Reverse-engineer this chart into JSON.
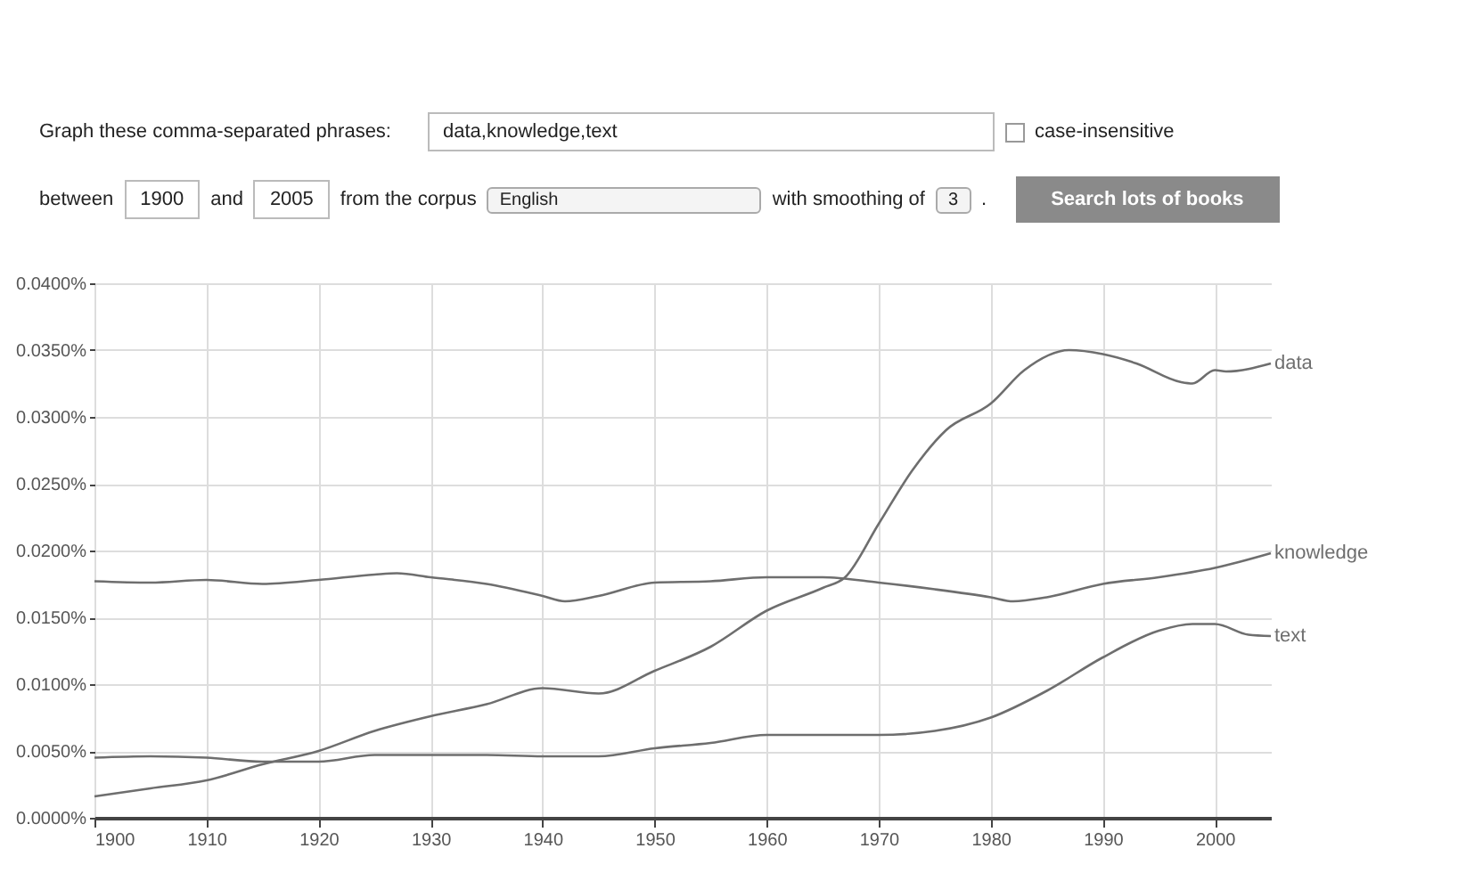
{
  "chart_data": {
    "type": "line",
    "annotations": [
      "Graph these comma-separated phrases:",
      "data,knowledge,text",
      "case-insensitive",
      "between",
      "1900",
      "and",
      "2005",
      "from the corpus",
      "English",
      "with smoothing of",
      "3",
      ".",
      "Search lots of books"
    ],
    "series": [
      {
        "name": "data",
        "color": "#6e6e6e",
        "x": [
          1900,
          1905,
          1910,
          1915,
          1920,
          1925,
          1930,
          1935,
          1940,
          1945,
          1950,
          1955,
          1960,
          1965,
          1967,
          1970,
          1973,
          1976,
          1980,
          1983,
          1987,
          1990,
          1993,
          1997,
          1998,
          2000,
          2001,
          2005
        ],
        "values": [
          0.0016,
          0.0022,
          0.0028,
          0.004,
          0.005,
          0.0065,
          0.0076,
          0.0085,
          0.0097,
          0.0093,
          0.011,
          0.0128,
          0.0155,
          0.0172,
          0.018,
          0.022,
          0.026,
          0.029,
          0.031,
          0.0335,
          0.035,
          0.0347,
          0.034,
          0.0326,
          0.0325,
          0.0335,
          0.0334,
          0.034
        ]
      },
      {
        "name": "knowledge",
        "color": "#6e6e6e",
        "x": [
          1900,
          1905,
          1910,
          1915,
          1920,
          1925,
          1927,
          1930,
          1935,
          1940,
          1942,
          1945,
          1950,
          1955,
          1960,
          1965,
          1970,
          1975,
          1980,
          1982,
          1985,
          1990,
          1995,
          2000,
          2005
        ],
        "values": [
          0.0177,
          0.0176,
          0.0178,
          0.0175,
          0.0178,
          0.0182,
          0.0183,
          0.018,
          0.0175,
          0.0166,
          0.0162,
          0.0166,
          0.0176,
          0.0177,
          0.018,
          0.018,
          0.0176,
          0.0171,
          0.0165,
          0.0162,
          0.0165,
          0.0175,
          0.018,
          0.0187,
          0.0198
        ]
      },
      {
        "name": "text",
        "color": "#6e6e6e",
        "x": [
          1900,
          1905,
          1910,
          1915,
          1920,
          1925,
          1930,
          1935,
          1940,
          1945,
          1950,
          1955,
          1960,
          1965,
          1970,
          1975,
          1980,
          1985,
          1990,
          1995,
          1998,
          2000,
          2003,
          2005
        ],
        "values": [
          0.0045,
          0.0046,
          0.0045,
          0.0042,
          0.0042,
          0.0047,
          0.0047,
          0.0047,
          0.0046,
          0.0046,
          0.0052,
          0.0056,
          0.0062,
          0.0062,
          0.0062,
          0.0065,
          0.0075,
          0.0095,
          0.012,
          0.014,
          0.0145,
          0.0145,
          0.0137,
          0.0136
        ]
      }
    ],
    "xlim": [
      1900,
      2005
    ],
    "xticks": [
      1900,
      1910,
      1920,
      1930,
      1940,
      1950,
      1960,
      1970,
      1980,
      1990,
      2000
    ],
    "ylim": [
      0,
      0.04
    ],
    "yticks": [
      {
        "value": 0,
        "label": "0.0000%"
      },
      {
        "value": 0.005,
        "label": "0.0050%"
      },
      {
        "value": 0.01,
        "label": "0.0100%"
      },
      {
        "value": 0.015,
        "label": "0.0150%"
      },
      {
        "value": 0.02,
        "label": "0.0200%"
      },
      {
        "value": 0.025,
        "label": "0.0250%"
      },
      {
        "value": 0.03,
        "label": "0.0300%"
      },
      {
        "value": 0.035,
        "label": "0.0350%"
      },
      {
        "value": 0.04,
        "label": "0.0400%"
      }
    ],
    "grid": true,
    "legend": false,
    "line_style": "solid",
    "marker": "none"
  }
}
